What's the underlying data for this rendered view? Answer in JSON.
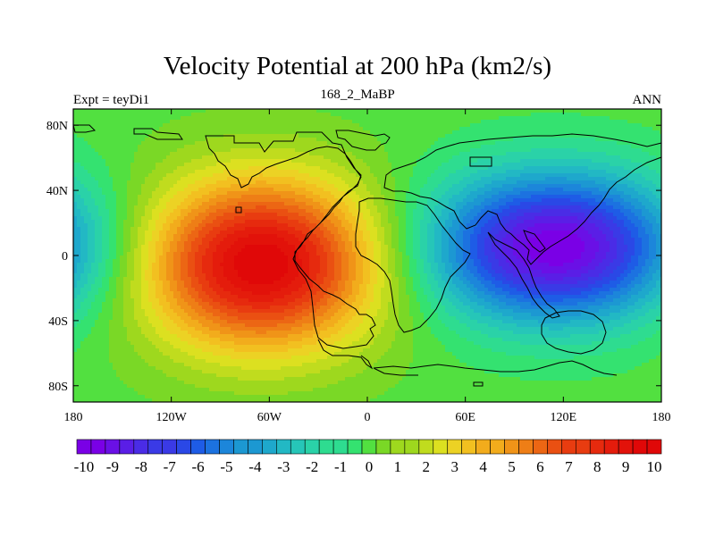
{
  "chart_data": {
    "type": "heatmap",
    "title": "Velocity Potential at 200 hPa (km2/s)",
    "left_label": "Expt = teyDi1",
    "center_label": "168_2_MaBP",
    "right_label": "ANN",
    "x_range": [
      -180,
      180
    ],
    "y_range": [
      -90,
      90
    ],
    "x_ticks": [
      {
        "value": -180,
        "label": "180"
      },
      {
        "value": -120,
        "label": "120W"
      },
      {
        "value": -60,
        "label": "60W"
      },
      {
        "value": 0,
        "label": "0"
      },
      {
        "value": 60,
        "label": "60E"
      },
      {
        "value": 120,
        "label": "120E"
      },
      {
        "value": 180,
        "label": "180"
      }
    ],
    "y_ticks": [
      {
        "value": 80,
        "label": "80N"
      },
      {
        "value": 40,
        "label": "40N"
      },
      {
        "value": 0,
        "label": "0"
      },
      {
        "value": -40,
        "label": "40S"
      },
      {
        "value": -80,
        "label": "80S"
      }
    ],
    "levels_min": -10,
    "levels_max": 10,
    "level_step": 0.5,
    "colorbar_labels": [
      "-10",
      "-9",
      "-8",
      "-7",
      "-6",
      "-5",
      "-4",
      "-3",
      "-2",
      "-1",
      "0",
      "1",
      "2",
      "3",
      "4",
      "5",
      "6",
      "7",
      "8",
      "9",
      "10"
    ],
    "field_centers": [
      {
        "name": "positive-max-south-america",
        "lon": -65,
        "lat": -5,
        "value": 10
      },
      {
        "name": "negative-min-indo-pacific",
        "lon": 115,
        "lat": 5,
        "value": -10
      }
    ]
  },
  "colors": {
    "palette": [
      "#7a00e6",
      "#6a10e6",
      "#5a1ee6",
      "#4a2ce6",
      "#3a3ae6",
      "#2a48e6",
      "#1e5ce6",
      "#1c72e0",
      "#1c86da",
      "#1c98d2",
      "#1ea8cc",
      "#22b8c4",
      "#26c6b8",
      "#2ad2a8",
      "#2edc90",
      "#34e270",
      "#52e040",
      "#7ad826",
      "#9ed81e",
      "#c0dc1e",
      "#dce020",
      "#ecd224",
      "#f2c020",
      "#f2ac1c",
      "#f09418",
      "#ee7e16",
      "#ec6614",
      "#ea5012",
      "#e83c10",
      "#e62a0e",
      "#e41c0c",
      "#e2120a",
      "#e00808"
    ]
  }
}
